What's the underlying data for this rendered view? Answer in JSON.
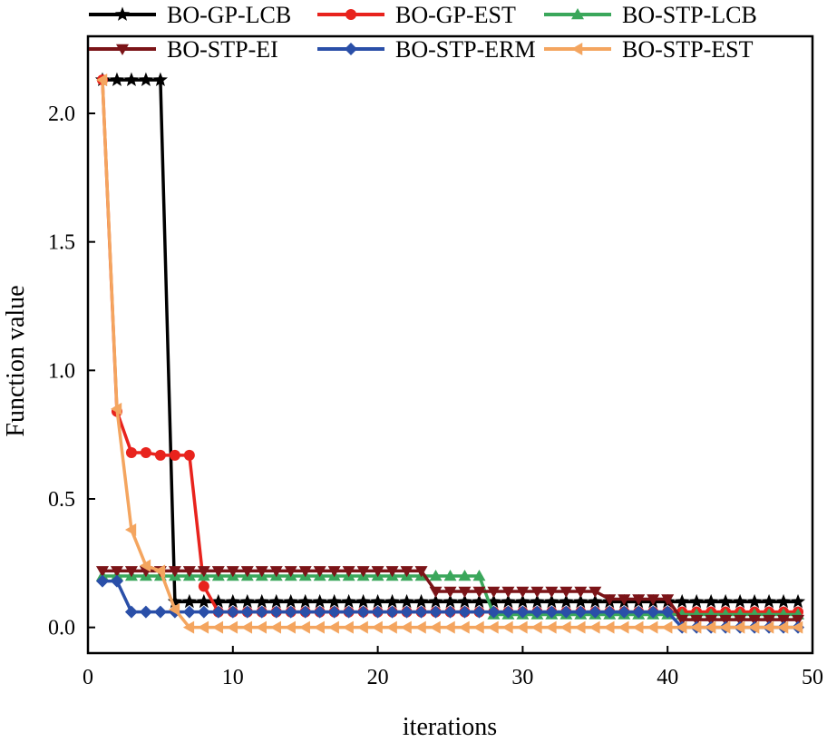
{
  "chart_data": {
    "type": "line",
    "xlabel": "iterations",
    "ylabel": "Function value",
    "xlim": [
      0,
      50
    ],
    "ylim": [
      -0.1,
      2.3
    ],
    "xticks": [
      0,
      10,
      20,
      30,
      40,
      50
    ],
    "yticks": [
      0.0,
      0.5,
      1.0,
      1.5,
      2.0
    ],
    "xtick_labels": [
      "0",
      "10",
      "20",
      "30",
      "40",
      "50"
    ],
    "ytick_labels": [
      "0.0",
      "0.5",
      "1.0",
      "1.5",
      "2.0"
    ],
    "grid": false,
    "legend_placement": "top",
    "series": [
      {
        "name": "BO-GP-LCB",
        "color": "#000000",
        "marker": "star",
        "x": [
          1,
          2,
          3,
          4,
          5,
          6,
          7,
          8,
          9,
          10,
          11,
          12,
          13,
          14,
          15,
          16,
          17,
          18,
          19,
          20,
          21,
          22,
          23,
          24,
          25,
          26,
          27,
          28,
          29,
          30,
          31,
          32,
          33,
          34,
          35,
          36,
          37,
          38,
          39,
          40,
          41,
          42,
          43,
          44,
          45,
          46,
          47,
          48,
          49
        ],
        "y": [
          2.13,
          2.13,
          2.13,
          2.13,
          2.13,
          0.1,
          0.1,
          0.1,
          0.1,
          0.1,
          0.1,
          0.1,
          0.1,
          0.1,
          0.1,
          0.1,
          0.1,
          0.1,
          0.1,
          0.1,
          0.1,
          0.1,
          0.1,
          0.1,
          0.1,
          0.1,
          0.1,
          0.1,
          0.1,
          0.1,
          0.1,
          0.1,
          0.1,
          0.1,
          0.1,
          0.1,
          0.1,
          0.1,
          0.1,
          0.1,
          0.1,
          0.1,
          0.1,
          0.1,
          0.1,
          0.1,
          0.1,
          0.1,
          0.1
        ]
      },
      {
        "name": "BO-GP-EST",
        "color": "#e8231d",
        "marker": "circle",
        "x": [
          1,
          2,
          3,
          4,
          5,
          6,
          7,
          8,
          9,
          10,
          11,
          12,
          13,
          14,
          15,
          16,
          17,
          18,
          19,
          20,
          21,
          22,
          23,
          24,
          25,
          26,
          27,
          28,
          29,
          30,
          31,
          32,
          33,
          34,
          35,
          36,
          37,
          38,
          39,
          40,
          41,
          42,
          43,
          44,
          45,
          46,
          47,
          48,
          49
        ],
        "y": [
          2.13,
          0.84,
          0.68,
          0.68,
          0.67,
          0.67,
          0.67,
          0.16,
          0.06,
          0.06,
          0.06,
          0.06,
          0.06,
          0.06,
          0.06,
          0.06,
          0.06,
          0.06,
          0.06,
          0.06,
          0.06,
          0.06,
          0.06,
          0.06,
          0.06,
          0.06,
          0.06,
          0.06,
          0.06,
          0.06,
          0.06,
          0.06,
          0.06,
          0.06,
          0.06,
          0.06,
          0.06,
          0.06,
          0.06,
          0.06,
          0.06,
          0.06,
          0.06,
          0.06,
          0.06,
          0.06,
          0.06,
          0.06,
          0.06
        ]
      },
      {
        "name": "BO-STP-LCB",
        "color": "#3aa75b",
        "marker": "triangle-up",
        "x": [
          1,
          2,
          3,
          4,
          5,
          6,
          7,
          8,
          9,
          10,
          11,
          12,
          13,
          14,
          15,
          16,
          17,
          18,
          19,
          20,
          21,
          22,
          23,
          24,
          25,
          26,
          27,
          28,
          29,
          30,
          31,
          32,
          33,
          34,
          35,
          36,
          37,
          38,
          39,
          40,
          41,
          42,
          43,
          44,
          45,
          46,
          47,
          48,
          49
        ],
        "y": [
          0.2,
          0.2,
          0.2,
          0.2,
          0.2,
          0.2,
          0.2,
          0.2,
          0.2,
          0.2,
          0.2,
          0.2,
          0.2,
          0.2,
          0.2,
          0.2,
          0.2,
          0.2,
          0.2,
          0.2,
          0.2,
          0.2,
          0.2,
          0.2,
          0.2,
          0.2,
          0.2,
          0.05,
          0.05,
          0.05,
          0.05,
          0.05,
          0.05,
          0.05,
          0.05,
          0.05,
          0.05,
          0.05,
          0.05,
          0.05,
          0.05,
          0.05,
          0.05,
          0.05,
          0.05,
          0.05,
          0.05,
          0.05,
          0.05
        ]
      },
      {
        "name": "BO-STP-EI",
        "color": "#7b1418",
        "marker": "triangle-down",
        "x": [
          1,
          2,
          3,
          4,
          5,
          6,
          7,
          8,
          9,
          10,
          11,
          12,
          13,
          14,
          15,
          16,
          17,
          18,
          19,
          20,
          21,
          22,
          23,
          24,
          25,
          26,
          27,
          28,
          29,
          30,
          31,
          32,
          33,
          34,
          35,
          36,
          37,
          38,
          39,
          40,
          41,
          42,
          43,
          44,
          45,
          46,
          47,
          48,
          49
        ],
        "y": [
          0.22,
          0.22,
          0.22,
          0.22,
          0.22,
          0.22,
          0.22,
          0.22,
          0.22,
          0.22,
          0.22,
          0.22,
          0.22,
          0.22,
          0.22,
          0.22,
          0.22,
          0.22,
          0.22,
          0.22,
          0.22,
          0.22,
          0.22,
          0.14,
          0.14,
          0.14,
          0.14,
          0.14,
          0.14,
          0.14,
          0.14,
          0.14,
          0.14,
          0.14,
          0.14,
          0.11,
          0.11,
          0.11,
          0.11,
          0.11,
          0.03,
          0.03,
          0.03,
          0.03,
          0.03,
          0.03,
          0.03,
          0.03,
          0.03
        ]
      },
      {
        "name": "BO-STP-ERM",
        "color": "#2a4fa8",
        "marker": "diamond",
        "x": [
          1,
          2,
          3,
          4,
          5,
          6,
          7,
          8,
          9,
          10,
          11,
          12,
          13,
          14,
          15,
          16,
          17,
          18,
          19,
          20,
          21,
          22,
          23,
          24,
          25,
          26,
          27,
          28,
          29,
          30,
          31,
          32,
          33,
          34,
          35,
          36,
          37,
          38,
          39,
          40,
          41,
          42,
          43,
          44,
          45,
          46,
          47,
          48,
          49
        ],
        "y": [
          0.18,
          0.18,
          0.06,
          0.06,
          0.06,
          0.06,
          0.06,
          0.06,
          0.06,
          0.06,
          0.06,
          0.06,
          0.06,
          0.06,
          0.06,
          0.06,
          0.06,
          0.06,
          0.06,
          0.06,
          0.06,
          0.06,
          0.06,
          0.06,
          0.06,
          0.06,
          0.06,
          0.06,
          0.06,
          0.06,
          0.06,
          0.06,
          0.06,
          0.06,
          0.06,
          0.06,
          0.06,
          0.06,
          0.06,
          0.06,
          0.0,
          0.0,
          0.0,
          0.0,
          0.0,
          0.0,
          0.0,
          0.0,
          0.0
        ]
      },
      {
        "name": "BO-STP-EST",
        "color": "#f4a55f",
        "marker": "triangle-left",
        "x": [
          1,
          2,
          3,
          4,
          5,
          6,
          7,
          8,
          9,
          10,
          11,
          12,
          13,
          14,
          15,
          16,
          17,
          18,
          19,
          20,
          21,
          22,
          23,
          24,
          25,
          26,
          27,
          28,
          29,
          30,
          31,
          32,
          33,
          34,
          35,
          36,
          37,
          38,
          39,
          40,
          41,
          42,
          43,
          44,
          45,
          46,
          47,
          48,
          49
        ],
        "y": [
          2.13,
          0.85,
          0.38,
          0.24,
          0.22,
          0.07,
          0.0,
          0.0,
          0.0,
          0.0,
          0.0,
          0.0,
          0.0,
          0.0,
          0.0,
          0.0,
          0.0,
          0.0,
          0.0,
          0.0,
          0.0,
          0.0,
          0.0,
          0.0,
          0.0,
          0.0,
          0.0,
          0.0,
          0.0,
          0.0,
          0.0,
          0.0,
          0.0,
          0.0,
          0.0,
          0.0,
          0.0,
          0.0,
          0.0,
          0.0,
          0.0,
          0.0,
          0.0,
          0.0,
          0.0,
          0.0,
          0.0,
          0.0,
          0.0
        ]
      }
    ]
  }
}
